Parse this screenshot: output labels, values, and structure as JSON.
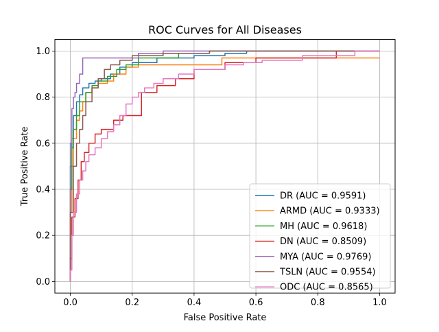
{
  "chart_data": {
    "type": "line",
    "title": "ROC Curves for All Diseases",
    "xlabel": "False Positive Rate",
    "ylabel": "True Positive Rate",
    "xlim": [
      -0.05,
      1.05
    ],
    "ylim": [
      -0.05,
      1.05
    ],
    "xticks": [
      "0.0",
      "0.2",
      "0.4",
      "0.6",
      "0.8",
      "1.0"
    ],
    "yticks": [
      "0.0",
      "0.2",
      "0.4",
      "0.6",
      "0.8",
      "1.0"
    ],
    "grid": true,
    "legend_position": "lower-right",
    "series": [
      {
        "name": "DR (AUC = 0.9591)",
        "color": "#1f77b4",
        "x": [
          0,
          0,
          0.005,
          0.005,
          0.01,
          0.01,
          0.02,
          0.02,
          0.03,
          0.03,
          0.04,
          0.04,
          0.06,
          0.06,
          0.08,
          0.08,
          0.1,
          0.1,
          0.13,
          0.13,
          0.16,
          0.16,
          0.2,
          0.2,
          0.28,
          0.28,
          0.4,
          0.4,
          0.5,
          0.5,
          0.57,
          0.57,
          1.0
        ],
        "y": [
          0,
          0.5,
          0.5,
          0.62,
          0.62,
          0.72,
          0.72,
          0.78,
          0.78,
          0.81,
          0.81,
          0.84,
          0.84,
          0.86,
          0.86,
          0.87,
          0.87,
          0.88,
          0.88,
          0.9,
          0.9,
          0.93,
          0.93,
          0.95,
          0.95,
          0.97,
          0.97,
          0.98,
          0.98,
          0.99,
          0.99,
          1.0,
          1.0
        ]
      },
      {
        "name": "ARMD (AUC = 0.9333)",
        "color": "#ff7f0e",
        "x": [
          0,
          0,
          0.005,
          0.005,
          0.01,
          0.01,
          0.02,
          0.02,
          0.03,
          0.03,
          0.04,
          0.04,
          0.05,
          0.05,
          0.07,
          0.07,
          0.09,
          0.09,
          0.12,
          0.12,
          0.14,
          0.14,
          0.18,
          0.18,
          0.22,
          0.22,
          0.49,
          0.49,
          1.0
        ],
        "y": [
          0,
          0.3,
          0.3,
          0.5,
          0.5,
          0.62,
          0.62,
          0.7,
          0.7,
          0.74,
          0.74,
          0.78,
          0.78,
          0.82,
          0.82,
          0.84,
          0.84,
          0.86,
          0.86,
          0.87,
          0.87,
          0.9,
          0.9,
          0.93,
          0.93,
          0.94,
          0.94,
          0.97,
          0.97
        ]
      },
      {
        "name": "MH (AUC = 0.9618)",
        "color": "#2ca02c",
        "x": [
          0,
          0,
          0.005,
          0.005,
          0.01,
          0.01,
          0.02,
          0.02,
          0.03,
          0.03,
          0.05,
          0.05,
          0.07,
          0.07,
          0.09,
          0.09,
          0.12,
          0.12,
          0.15,
          0.15,
          0.18,
          0.18,
          0.22,
          0.22,
          0.35,
          0.35,
          0.45,
          0.45,
          1.0
        ],
        "y": [
          0,
          0.4,
          0.4,
          0.58,
          0.58,
          0.66,
          0.66,
          0.72,
          0.72,
          0.78,
          0.78,
          0.82,
          0.82,
          0.85,
          0.85,
          0.87,
          0.87,
          0.89,
          0.89,
          0.92,
          0.92,
          0.94,
          0.94,
          0.97,
          0.97,
          0.99,
          0.99,
          1.0,
          1.0
        ]
      },
      {
        "name": "DN (AUC = 0.8509)",
        "color": "#d62728",
        "x": [
          0,
          0,
          0.005,
          0.005,
          0.015,
          0.015,
          0.025,
          0.025,
          0.035,
          0.035,
          0.045,
          0.045,
          0.06,
          0.06,
          0.08,
          0.08,
          0.1,
          0.1,
          0.14,
          0.14,
          0.17,
          0.17,
          0.23,
          0.23,
          0.28,
          0.28,
          0.34,
          0.34,
          0.4,
          0.4,
          0.5,
          0.5,
          0.6,
          0.6,
          0.86,
          0.86,
          1.0
        ],
        "y": [
          0,
          0.1,
          0.1,
          0.28,
          0.28,
          0.36,
          0.36,
          0.44,
          0.44,
          0.52,
          0.52,
          0.56,
          0.56,
          0.6,
          0.6,
          0.64,
          0.64,
          0.66,
          0.66,
          0.7,
          0.7,
          0.72,
          0.72,
          0.82,
          0.82,
          0.85,
          0.85,
          0.88,
          0.88,
          0.92,
          0.92,
          0.95,
          0.95,
          0.97,
          0.97,
          1.0,
          1.0
        ]
      },
      {
        "name": "MYA (AUC = 0.9769)",
        "color": "#9467bd",
        "x": [
          0,
          0,
          0.005,
          0.005,
          0.01,
          0.01,
          0.015,
          0.015,
          0.02,
          0.02,
          0.03,
          0.03,
          0.04,
          0.04,
          0.22,
          0.22,
          0.3,
          0.3,
          1.0
        ],
        "y": [
          0,
          0.6,
          0.6,
          0.75,
          0.75,
          0.8,
          0.8,
          0.82,
          0.82,
          0.86,
          0.86,
          0.9,
          0.9,
          0.97,
          0.97,
          0.99,
          0.99,
          1.0,
          1.0
        ]
      },
      {
        "name": "TSLN (AUC = 0.9554)",
        "color": "#8c564b",
        "x": [
          0,
          0,
          0.01,
          0.01,
          0.02,
          0.02,
          0.03,
          0.03,
          0.04,
          0.04,
          0.05,
          0.05,
          0.07,
          0.07,
          0.09,
          0.09,
          0.11,
          0.11,
          0.13,
          0.13,
          0.16,
          0.16,
          0.2,
          0.2,
          0.3,
          0.3,
          0.45,
          0.45,
          0.6,
          0.6,
          1.0
        ],
        "y": [
          0,
          0.3,
          0.3,
          0.5,
          0.5,
          0.6,
          0.6,
          0.66,
          0.66,
          0.72,
          0.72,
          0.78,
          0.78,
          0.84,
          0.84,
          0.88,
          0.88,
          0.92,
          0.92,
          0.94,
          0.94,
          0.96,
          0.96,
          0.98,
          0.98,
          0.99,
          0.99,
          1.0,
          1.0,
          1.0,
          1.0
        ]
      },
      {
        "name": "ODC (AUC = 0.8565)",
        "color": "#e377c2",
        "x": [
          0,
          0,
          0.005,
          0.005,
          0.01,
          0.01,
          0.02,
          0.02,
          0.03,
          0.03,
          0.04,
          0.04,
          0.05,
          0.05,
          0.06,
          0.06,
          0.08,
          0.08,
          0.1,
          0.1,
          0.12,
          0.12,
          0.14,
          0.14,
          0.16,
          0.16,
          0.18,
          0.18,
          0.2,
          0.2,
          0.22,
          0.22,
          0.24,
          0.24,
          0.27,
          0.27,
          0.3,
          0.3,
          0.35,
          0.35,
          0.4,
          0.4,
          0.5,
          0.5,
          0.56,
          0.56,
          0.62,
          0.62,
          0.75,
          0.75,
          0.92,
          0.92,
          1.0
        ],
        "y": [
          0,
          0.05,
          0.05,
          0.2,
          0.2,
          0.3,
          0.3,
          0.38,
          0.38,
          0.44,
          0.44,
          0.48,
          0.48,
          0.52,
          0.52,
          0.55,
          0.55,
          0.58,
          0.58,
          0.62,
          0.62,
          0.65,
          0.65,
          0.68,
          0.68,
          0.72,
          0.72,
          0.77,
          0.77,
          0.8,
          0.8,
          0.82,
          0.82,
          0.84,
          0.84,
          0.86,
          0.86,
          0.88,
          0.88,
          0.9,
          0.9,
          0.92,
          0.92,
          0.94,
          0.94,
          0.95,
          0.95,
          0.96,
          0.96,
          0.98,
          0.98,
          1.0,
          1.0
        ]
      }
    ]
  }
}
